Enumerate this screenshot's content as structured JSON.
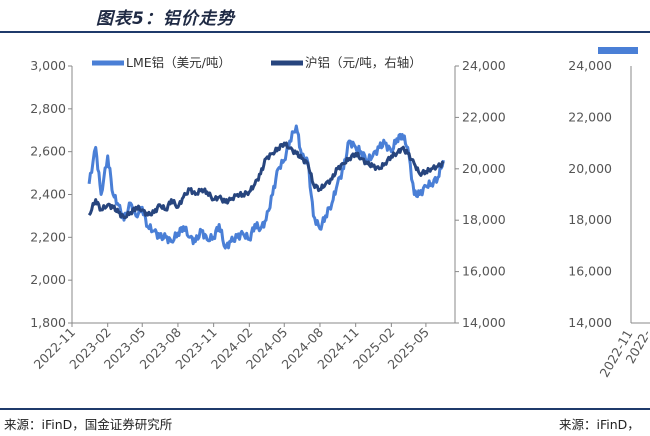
{
  "figure": {
    "title": "图表5：铝价走势",
    "source_left": "来源：iFinD，国金证券研究所",
    "source_right": "来源：iFinD，"
  },
  "colors": {
    "lme": "#4a7fd6",
    "shfe": "#27457e",
    "rule": "#1f3a6b"
  },
  "chart_data": [
    {
      "type": "line",
      "title": "",
      "x": [
        "2022-12-15",
        "2023-01-01",
        "2023-01-15",
        "2023-02-01",
        "2023-02-15",
        "2023-03-01",
        "2023-03-15",
        "2023-04-01",
        "2023-04-15",
        "2023-05-01",
        "2023-05-15",
        "2023-06-01",
        "2023-06-15",
        "2023-07-01",
        "2023-07-15",
        "2023-08-01",
        "2023-08-15",
        "2023-09-01",
        "2023-09-15",
        "2023-10-01",
        "2023-10-15",
        "2023-11-01",
        "2023-11-15",
        "2023-12-01",
        "2023-12-15",
        "2024-01-01",
        "2024-01-15",
        "2024-02-01",
        "2024-02-15",
        "2024-03-01",
        "2024-03-15",
        "2024-04-01",
        "2024-04-15",
        "2024-05-01",
        "2024-05-15",
        "2024-06-01",
        "2024-06-15",
        "2024-07-01",
        "2024-07-15",
        "2024-08-01",
        "2024-08-15",
        "2024-09-01",
        "2024-09-15",
        "2024-10-01",
        "2024-10-15",
        "2024-11-01",
        "2024-11-15",
        "2024-12-01",
        "2024-12-15",
        "2025-01-01",
        "2025-01-15",
        "2025-02-01",
        "2025-02-15",
        "2025-03-01",
        "2025-03-15",
        "2025-04-01",
        "2025-04-15",
        "2025-05-01",
        "2025-05-15",
        "2025-06-01",
        "2025-06-15"
      ],
      "x_tick_labels": [
        "2022-11",
        "2023-02",
        "2023-05",
        "2023-08",
        "2023-11",
        "2024-02",
        "2024-05",
        "2024-08",
        "2024-11",
        "2025-02",
        "2025-05"
      ],
      "series": [
        {
          "name": "LME铝（美元/吨）",
          "axis": "left",
          "values": [
            2450,
            2620,
            2400,
            2580,
            2400,
            2350,
            2280,
            2360,
            2300,
            2340,
            2250,
            2230,
            2200,
            2200,
            2180,
            2220,
            2250,
            2200,
            2180,
            2230,
            2190,
            2200,
            2260,
            2150,
            2180,
            2200,
            2220,
            2190,
            2260,
            2240,
            2280,
            2400,
            2520,
            2560,
            2650,
            2720,
            2580,
            2550,
            2300,
            2240,
            2300,
            2360,
            2450,
            2520,
            2650,
            2620,
            2600,
            2560,
            2580,
            2620,
            2640,
            2600,
            2660,
            2680,
            2620,
            2400,
            2400,
            2440,
            2450,
            2480,
            2560
          ]
        },
        {
          "name": "沪铝（元/吨，右轴）",
          "axis": "right",
          "values": [
            18200,
            18800,
            18400,
            18600,
            18500,
            18300,
            18100,
            18300,
            18500,
            18400,
            18200,
            18300,
            18600,
            18400,
            18800,
            18500,
            18900,
            19200,
            19000,
            19200,
            19100,
            18800,
            18900,
            18700,
            18800,
            19000,
            19000,
            19100,
            19400,
            19800,
            20400,
            20600,
            20800,
            21000,
            20800,
            20600,
            20400,
            20200,
            19400,
            19200,
            19400,
            19600,
            20000,
            20200,
            20400,
            20600,
            20400,
            20200,
            20100,
            20000,
            20200,
            20500,
            20600,
            20800,
            20600,
            20200,
            19800,
            19900,
            20000,
            20100,
            20200
          ]
        }
      ],
      "y_left": {
        "min": 1800,
        "max": 3000,
        "ticks": [
          "1,800",
          "2,000",
          "2,200",
          "2,400",
          "2,600",
          "2,800",
          "3,000"
        ]
      },
      "y_right": {
        "min": 14000,
        "max": 24000,
        "ticks": [
          "14,000",
          "16,000",
          "18,000",
          "20,000",
          "22,000",
          "24,000"
        ]
      },
      "legend": "top",
      "grid": false
    },
    {
      "type": "bar",
      "title": "",
      "y_left": {
        "min": 14000,
        "max": 24000,
        "ticks": [
          "14,000",
          "16,000",
          "18,000",
          "20,000",
          "22,000",
          "24,000"
        ]
      },
      "x_tick_labels": [
        "2022-11",
        "2022-"
      ],
      "legend": "top",
      "grid": false
    }
  ]
}
